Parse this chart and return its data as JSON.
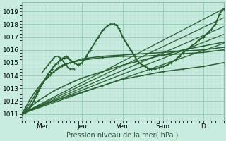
{
  "bg_color": "#c8ece0",
  "grid_major_color": "#90c8b0",
  "grid_minor_color": "#b0dcc8",
  "line_color": "#2a6030",
  "ylim": [
    1010.5,
    1019.7
  ],
  "yticks": [
    1011,
    1012,
    1013,
    1014,
    1015,
    1016,
    1017,
    1018,
    1019
  ],
  "xlim": [
    0.0,
    5.0
  ],
  "xtick_positions": [
    0.5,
    1.5,
    2.5,
    3.5,
    4.5
  ],
  "xticklabels": [
    "Mer",
    "Jeu",
    "Ven",
    "Sam",
    "D"
  ],
  "xlabel": "Pression niveau de la mer( hPa )",
  "lines": [
    {
      "x": [
        0.0,
        0.08,
        0.15,
        0.22,
        0.3,
        0.38,
        0.45,
        0.52,
        0.6,
        0.65,
        0.7,
        0.75,
        0.8,
        0.85,
        0.9,
        0.95,
        1.0,
        1.05,
        1.1,
        1.15,
        1.2,
        1.3,
        1.4,
        1.5,
        1.6,
        1.7,
        1.8,
        1.9,
        2.0,
        2.1,
        2.2,
        2.3,
        2.35,
        2.4,
        2.45,
        2.5,
        2.6,
        2.7,
        2.8,
        2.9,
        3.0,
        3.05,
        3.1,
        3.15,
        3.2,
        3.3,
        3.4,
        3.5,
        3.6,
        3.7,
        3.8,
        3.9,
        4.0,
        4.1,
        4.2,
        4.3,
        4.4,
        4.5,
        4.6,
        4.7,
        4.8,
        4.9,
        5.0
      ],
      "y": [
        1011.0,
        1011.1,
        1011.3,
        1011.6,
        1012.0,
        1012.5,
        1013.0,
        1013.4,
        1013.8,
        1014.1,
        1014.3,
        1014.5,
        1014.7,
        1014.9,
        1015.0,
        1015.2,
        1015.3,
        1015.4,
        1015.5,
        1015.4,
        1015.2,
        1015.0,
        1014.8,
        1015.0,
        1015.5,
        1016.0,
        1016.5,
        1017.0,
        1017.5,
        1017.8,
        1018.0,
        1018.0,
        1017.9,
        1017.7,
        1017.4,
        1017.0,
        1016.5,
        1016.0,
        1015.5,
        1015.0,
        1014.8,
        1014.7,
        1014.6,
        1014.5,
        1014.5,
        1014.5,
        1014.6,
        1014.7,
        1014.8,
        1015.0,
        1015.2,
        1015.5,
        1015.8,
        1016.0,
        1016.3,
        1016.5,
        1016.8,
        1017.0,
        1017.3,
        1017.6,
        1018.0,
        1018.8,
        1019.2
      ],
      "marker": true,
      "lw": 1.4,
      "ms": 2.5
    },
    {
      "x": [
        0.0,
        5.0
      ],
      "y": [
        1011.0,
        1016.5
      ],
      "marker": false,
      "lw": 0.9,
      "ms": 0
    },
    {
      "x": [
        0.0,
        5.0
      ],
      "y": [
        1011.0,
        1017.2
      ],
      "marker": false,
      "lw": 0.9,
      "ms": 0
    },
    {
      "x": [
        0.0,
        5.0
      ],
      "y": [
        1011.0,
        1017.8
      ],
      "marker": false,
      "lw": 0.9,
      "ms": 0
    },
    {
      "x": [
        0.0,
        5.0
      ],
      "y": [
        1011.0,
        1018.5
      ],
      "marker": false,
      "lw": 0.9,
      "ms": 0
    },
    {
      "x": [
        0.0,
        5.0
      ],
      "y": [
        1011.0,
        1019.2
      ],
      "marker": false,
      "lw": 0.9,
      "ms": 0
    },
    {
      "x": [
        0.0,
        0.1,
        0.2,
        0.3,
        0.4,
        0.5,
        0.6,
        0.7,
        0.8,
        0.9,
        1.0,
        1.2,
        1.5,
        2.0,
        2.5,
        3.0,
        3.5,
        4.0,
        4.5,
        5.0
      ],
      "y": [
        1011.0,
        1011.3,
        1011.8,
        1012.3,
        1012.8,
        1013.3,
        1013.7,
        1014.0,
        1014.3,
        1014.6,
        1014.8,
        1015.0,
        1015.3,
        1015.5,
        1015.6,
        1015.7,
        1015.8,
        1015.9,
        1016.0,
        1016.2
      ],
      "marker": true,
      "lw": 1.1,
      "ms": 2.0
    },
    {
      "x": [
        0.0,
        0.1,
        0.2,
        0.35,
        0.5,
        0.65,
        0.8,
        1.0,
        1.2,
        1.5,
        2.0,
        2.5,
        3.0,
        3.5,
        4.0,
        4.5,
        5.0
      ],
      "y": [
        1011.0,
        1011.5,
        1012.1,
        1012.8,
        1013.4,
        1013.9,
        1014.3,
        1014.7,
        1015.0,
        1015.2,
        1015.4,
        1015.5,
        1015.5,
        1015.6,
        1015.7,
        1015.8,
        1016.0
      ],
      "marker": true,
      "lw": 1.1,
      "ms": 2.0
    },
    {
      "x": [
        0.0,
        0.2,
        0.4,
        0.6,
        0.8,
        1.0,
        1.2,
        1.5,
        2.0,
        2.5,
        3.0,
        3.5,
        4.0,
        4.5,
        5.0
      ],
      "y": [
        1011.0,
        1011.5,
        1012.0,
        1012.4,
        1012.8,
        1013.1,
        1013.4,
        1013.8,
        1014.3,
        1014.8,
        1015.2,
        1015.6,
        1016.0,
        1016.3,
        1016.6
      ],
      "marker": true,
      "lw": 1.1,
      "ms": 2.0
    },
    {
      "x": [
        0.0,
        0.3,
        0.6,
        1.0,
        1.5,
        2.0,
        2.5,
        3.0,
        3.5,
        4.0,
        4.5,
        5.0
      ],
      "y": [
        1011.0,
        1011.4,
        1011.8,
        1012.2,
        1012.7,
        1013.2,
        1013.7,
        1014.0,
        1014.3,
        1014.5,
        1014.7,
        1015.0
      ],
      "marker": true,
      "lw": 1.1,
      "ms": 2.0
    },
    {
      "x": [
        0.5,
        0.6,
        0.65,
        0.7,
        0.75,
        0.8,
        0.85,
        0.9,
        0.95,
        1.0,
        1.05,
        1.1,
        1.15,
        1.2,
        1.3
      ],
      "y": [
        1014.2,
        1014.6,
        1014.8,
        1015.0,
        1015.2,
        1015.4,
        1015.5,
        1015.5,
        1015.4,
        1015.2,
        1015.0,
        1014.8,
        1014.6,
        1014.5,
        1014.5
      ],
      "marker": true,
      "lw": 1.1,
      "ms": 2.0
    }
  ]
}
